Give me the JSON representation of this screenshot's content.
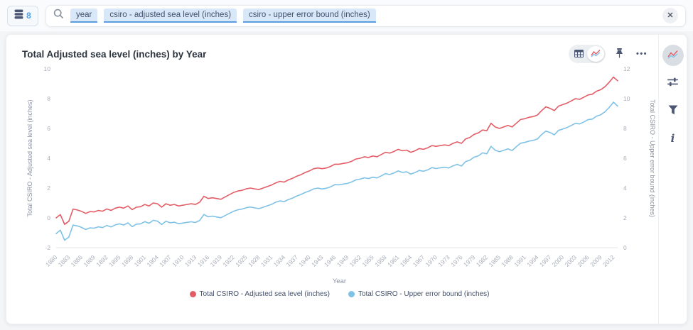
{
  "topbar": {
    "db_button": {
      "count": "8"
    },
    "search": {
      "tags": [
        "year",
        "csiro - adjusted sea level (inches)",
        "csiro - upper error bound (inches)"
      ]
    },
    "close_label": "✕"
  },
  "card": {
    "title": "Total Adjusted sea level (inches) by Year",
    "toolbar": {
      "ellipsis": "•••"
    }
  },
  "chart_data": {
    "type": "line",
    "title": "Total Adjusted sea level (inches) by Year",
    "xlabel": "Year",
    "x_start": 1880,
    "x_end": 2013,
    "x_ticks": [
      1880,
      1883,
      1886,
      1889,
      1892,
      1895,
      1898,
      1901,
      1904,
      1907,
      1910,
      1913,
      1916,
      1919,
      1922,
      1925,
      1928,
      1931,
      1934,
      1937,
      1940,
      1943,
      1946,
      1949,
      1952,
      1955,
      1958,
      1961,
      1964,
      1967,
      1970,
      1973,
      1976,
      1979,
      1982,
      1985,
      1988,
      1991,
      1994,
      1997,
      2000,
      2003,
      2006,
      2009,
      2012
    ],
    "grid": false,
    "legend_position": "bottom",
    "left_axis": {
      "label": "Total CSIRO - Adjusted sea level (inches)",
      "min": -2,
      "max": 10,
      "ticks": [
        10,
        8,
        6,
        4,
        2,
        0,
        -2
      ]
    },
    "right_axis": {
      "label": "Total CSIRO - Upper error bound (inches)",
      "min": 0,
      "max": 12,
      "ticks": [
        12,
        10,
        8,
        6,
        4,
        2,
        0
      ]
    },
    "series": [
      {
        "name": "Total CSIRO - Adjusted sea level (inches)",
        "axis": "left",
        "color": "#e35d66",
        "values": [
          0,
          0.22,
          -0.44,
          -0.23,
          0.59,
          0.53,
          0.44,
          0.3,
          0.42,
          0.4,
          0.5,
          0.45,
          0.6,
          0.5,
          0.65,
          0.72,
          0.65,
          0.8,
          0.55,
          0.72,
          0.75,
          0.9,
          0.8,
          1.0,
          0.95,
          0.72,
          0.95,
          0.85,
          0.9,
          0.8,
          0.85,
          0.9,
          0.95,
          0.9,
          1.05,
          1.45,
          1.3,
          1.35,
          1.3,
          1.25,
          1.4,
          1.55,
          1.7,
          1.8,
          1.85,
          1.95,
          2.0,
          1.95,
          1.9,
          2.0,
          2.1,
          2.2,
          2.35,
          2.45,
          2.4,
          2.55,
          2.65,
          2.8,
          2.9,
          3.05,
          3.15,
          3.3,
          3.35,
          3.3,
          3.35,
          3.45,
          3.6,
          3.6,
          3.65,
          3.7,
          3.8,
          3.95,
          4.0,
          4.1,
          4.05,
          4.15,
          4.1,
          4.25,
          4.4,
          4.35,
          4.45,
          4.6,
          4.5,
          4.55,
          4.4,
          4.5,
          4.65,
          4.6,
          4.7,
          4.85,
          4.8,
          4.85,
          4.9,
          4.85,
          5.0,
          5.1,
          5.0,
          5.3,
          5.4,
          5.6,
          5.7,
          5.9,
          5.85,
          6.35,
          6.1,
          6.0,
          6.1,
          6.2,
          6.1,
          6.35,
          6.6,
          6.65,
          6.75,
          6.8,
          6.9,
          7.2,
          7.45,
          7.35,
          7.2,
          7.5,
          7.6,
          7.7,
          7.85,
          8.0,
          7.95,
          8.1,
          8.25,
          8.3,
          8.5,
          8.6,
          8.8,
          9.1,
          9.45,
          9.2
        ]
      },
      {
        "name": "Total CSIRO - Upper error bound (inches)",
        "axis": "right",
        "color": "#7fc2e5",
        "values": [
          0.95,
          1.17,
          0.5,
          0.71,
          1.52,
          1.46,
          1.36,
          1.22,
          1.33,
          1.31,
          1.4,
          1.35,
          1.49,
          1.39,
          1.53,
          1.6,
          1.52,
          1.67,
          1.41,
          1.58,
          1.6,
          1.75,
          1.64,
          1.84,
          1.78,
          1.55,
          1.77,
          1.67,
          1.71,
          1.61,
          1.65,
          1.7,
          1.74,
          1.69,
          1.83,
          2.23,
          2.07,
          2.12,
          2.06,
          2.01,
          2.15,
          2.3,
          2.44,
          2.54,
          2.59,
          2.68,
          2.73,
          2.67,
          2.62,
          2.71,
          2.81,
          2.9,
          3.05,
          3.14,
          3.09,
          3.23,
          3.33,
          3.47,
          3.57,
          3.71,
          3.81,
          3.95,
          4.0,
          3.94,
          3.99,
          4.08,
          4.23,
          4.22,
          4.27,
          4.31,
          4.41,
          4.55,
          4.6,
          4.69,
          4.64,
          4.73,
          4.68,
          4.82,
          4.97,
          4.91,
          5.01,
          5.15,
          5.05,
          5.09,
          4.94,
          5.04,
          5.18,
          5.13,
          5.22,
          5.37,
          5.31,
          5.36,
          5.4,
          5.35,
          5.49,
          5.59,
          5.48,
          5.78,
          5.87,
          6.07,
          6.16,
          6.36,
          6.3,
          6.8,
          6.54,
          6.44,
          6.53,
          6.63,
          6.52,
          6.77,
          7.01,
          7.06,
          7.15,
          7.2,
          7.29,
          7.59,
          7.83,
          7.73,
          7.57,
          7.87,
          7.96,
          8.06,
          8.2,
          8.35,
          8.3,
          8.44,
          8.59,
          8.63,
          8.83,
          8.92,
          9.12,
          9.41,
          9.76,
          9.5
        ]
      }
    ]
  }
}
